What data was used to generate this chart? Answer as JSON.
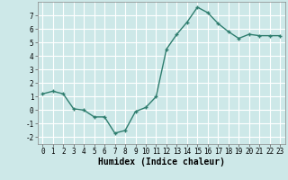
{
  "x": [
    0,
    1,
    2,
    3,
    4,
    5,
    6,
    7,
    8,
    9,
    10,
    11,
    12,
    13,
    14,
    15,
    16,
    17,
    18,
    19,
    20,
    21,
    22,
    23
  ],
  "y": [
    1.2,
    1.4,
    1.2,
    0.1,
    0.0,
    -0.5,
    -0.5,
    -1.7,
    -1.5,
    -0.1,
    0.2,
    1.0,
    4.5,
    5.6,
    6.5,
    7.6,
    7.2,
    6.4,
    5.8,
    5.3,
    5.6,
    5.5,
    5.5,
    5.5
  ],
  "xlabel": "Humidex (Indice chaleur)",
  "ylim": [
    -2.5,
    8.0
  ],
  "xlim": [
    -0.5,
    23.5
  ],
  "yticks": [
    -2,
    -1,
    0,
    1,
    2,
    3,
    4,
    5,
    6,
    7
  ],
  "xticks": [
    0,
    1,
    2,
    3,
    4,
    5,
    6,
    7,
    8,
    9,
    10,
    11,
    12,
    13,
    14,
    15,
    16,
    17,
    18,
    19,
    20,
    21,
    22,
    23
  ],
  "line_color": "#2e7d6e",
  "marker": "+",
  "marker_size": 3.0,
  "line_width": 1.0,
  "bg_color": "#cde8e8",
  "grid_color": "#ffffff",
  "tick_label_fontsize": 5.5,
  "xlabel_fontsize": 7.0
}
